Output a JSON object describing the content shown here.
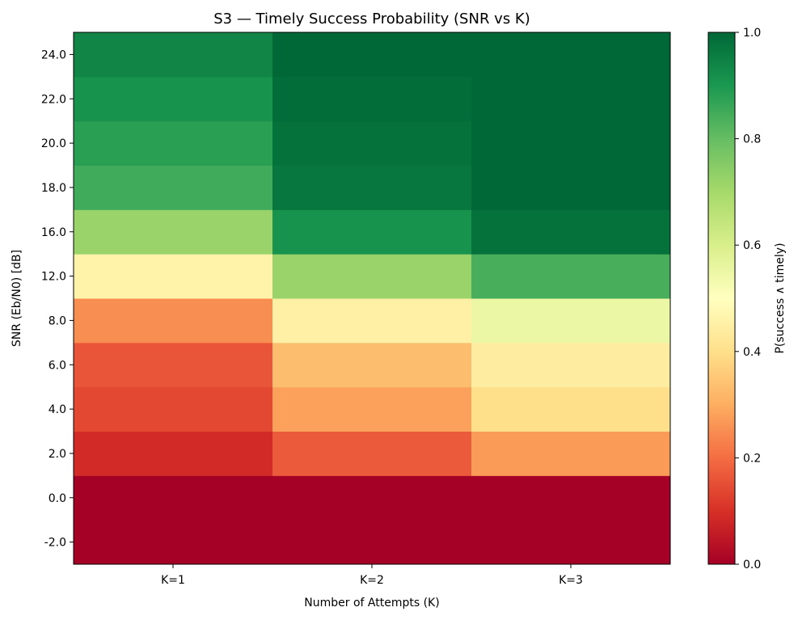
{
  "chart_data": {
    "type": "heatmap",
    "title": "S3 — Timely Success Probability (SNR vs K)",
    "xlabel": "Number of Attempts (K)",
    "ylabel": "SNR (Eb/N0) [dB]",
    "colorbar_label": "P(success ∧ timely)",
    "colormap": "RdYlGn",
    "value_range": [
      0.0,
      1.0
    ],
    "colorbar_ticks": [
      "0.0",
      "0.2",
      "0.4",
      "0.6",
      "0.8",
      "1.0"
    ],
    "x_categories": [
      "K=1",
      "K=2",
      "K=3"
    ],
    "y_categories": [
      "-2.0",
      "0.0",
      "2.0",
      "4.0",
      "6.0",
      "8.0",
      "12.0",
      "16.0",
      "18.0",
      "20.0",
      "22.0",
      "24.0"
    ],
    "values": [
      [
        0.0,
        0.0,
        0.0
      ],
      [
        0.0,
        0.0,
        0.0
      ],
      [
        0.09,
        0.17,
        0.27
      ],
      [
        0.14,
        0.28,
        0.4
      ],
      [
        0.16,
        0.33,
        0.44
      ],
      [
        0.25,
        0.45,
        0.55
      ],
      [
        0.46,
        0.72,
        0.84
      ],
      [
        0.72,
        0.91,
        0.98
      ],
      [
        0.85,
        0.97,
        1.0
      ],
      [
        0.88,
        0.98,
        1.0
      ],
      [
        0.91,
        0.99,
        1.0
      ],
      [
        0.94,
        1.0,
        1.0
      ]
    ]
  }
}
